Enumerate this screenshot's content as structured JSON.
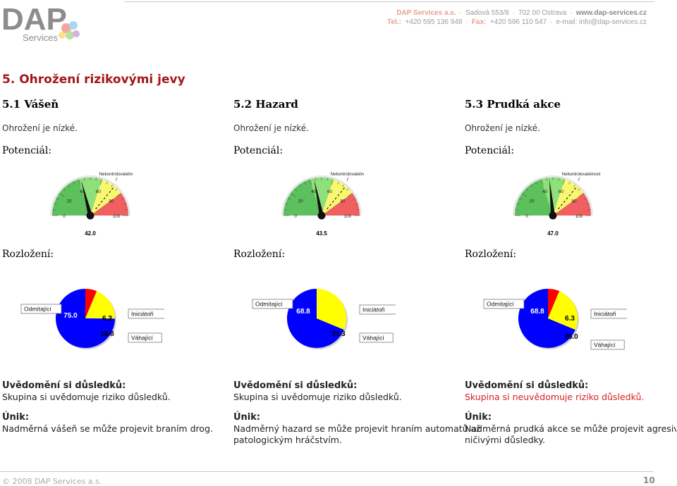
{
  "header": {
    "logo_text": "DAP",
    "logo_sub": "Services",
    "company": "DAP Services a.s.",
    "address_street": "Sadová 553/8",
    "address_city": "702 00 Ostrava",
    "website": "www.dap-services.cz",
    "tel_label": "Tel.:",
    "tel": "+420 595 136 948",
    "fax_label": "Fax:",
    "fax": "+420 596 110 547",
    "email": "e-mail: info@dap-services.cz"
  },
  "main_title": "5. Ohrožení rizikovými jevy",
  "sections": [
    {
      "title": "5.1 Vášeň",
      "threat": "Ohrožení je nízké.",
      "potential_label": "Potenciál:",
      "distribution_label": "Rozložení:",
      "awareness_label": "Uvědomění si důsledků:",
      "awareness_text": "Skupina si uvědomuje riziko důsledků.",
      "escape_label": "Únik:",
      "escape_text": "Nadměrná vášeň se může projevit braním drog.",
      "escape_text2": ""
    },
    {
      "title": "5.2 Hazard",
      "threat": "Ohrožení je nízké.",
      "potential_label": "Potenciál:",
      "distribution_label": "Rozložení:",
      "awareness_label": "Uvědomění si důsledků:",
      "awareness_text": "Skupina si uvědomuje riziko důsledků.",
      "escape_label": "Únik:",
      "escape_text": "Nadměrný hazard se může projevit hraním automatů až",
      "escape_text2": "patologickým hráčstvím."
    },
    {
      "title": "5.3 Prudká akce",
      "threat": "Ohrožení je nízké.",
      "potential_label": "Potenciál:",
      "distribution_label": "Rozložení:",
      "awareness_label": "Uvědomění si důsledků:",
      "awareness_text": "Skupina si neuvědomuje riziko důsledků.",
      "escape_label": "Únik:",
      "escape_text": "Nadměrná prudká akce se může projevit agresivitou s",
      "escape_text2": "ničivými důsledky."
    }
  ],
  "chart_data": [
    {
      "type": "gauge",
      "value": 42.0,
      "value_label": "42.0",
      "range": [
        0,
        100
      ],
      "ticks": [
        "0",
        "20",
        "40",
        "60",
        "80",
        "100"
      ],
      "annotation": "Nekontrolovatelnost",
      "colors": [
        "#5cc05c",
        "#8ee07a",
        "#f8f870",
        "#f06060"
      ]
    },
    {
      "type": "gauge",
      "value": 43.5,
      "value_label": "43.5",
      "range": [
        0,
        100
      ],
      "ticks": [
        "0",
        "20",
        "40",
        "60",
        "80",
        "100"
      ],
      "annotation": "Nekontrolovatelnost",
      "colors": [
        "#5cc05c",
        "#8ee07a",
        "#f8f870",
        "#f06060"
      ]
    },
    {
      "type": "gauge",
      "value": 47.0,
      "value_label": "47.0",
      "range": [
        0,
        100
      ],
      "ticks": [
        "0",
        "20",
        "40",
        "60",
        "80",
        "100"
      ],
      "annotation": "Nekontrolovatelnost",
      "colors": [
        "#5cc05c",
        "#8ee07a",
        "#f8f870",
        "#f06060"
      ]
    },
    {
      "type": "pie",
      "slices": [
        {
          "name": "Odmítající",
          "value": 75.0,
          "label": "75.0",
          "color": "#0000ff"
        },
        {
          "name": "Iniciátoři",
          "value": 6.3,
          "label": "6.3",
          "color": "#ff0000"
        },
        {
          "name": "Váhající",
          "value": 18.8,
          "label": "18.8",
          "color": "#ffff00"
        }
      ]
    },
    {
      "type": "pie",
      "slices": [
        {
          "name": "Odmítající",
          "value": 68.8,
          "label": "68.8",
          "color": "#0000ff"
        },
        {
          "name": "Iniciátoři",
          "value": 0,
          "label": "",
          "color": "#ff0000"
        },
        {
          "name": "Váhající",
          "value": 31.3,
          "label": "31.3",
          "color": "#ffff00"
        }
      ]
    },
    {
      "type": "pie",
      "slices": [
        {
          "name": "Odmítající",
          "value": 68.8,
          "label": "68.8",
          "color": "#0000ff"
        },
        {
          "name": "Iniciátoři",
          "value": 6.3,
          "label": "6.3",
          "color": "#ff0000"
        },
        {
          "name": "Váhající",
          "value": 25.0,
          "label": "25.0",
          "color": "#ffff00"
        }
      ]
    }
  ],
  "footer": {
    "copyright": "© 2008 DAP Services a.s.",
    "page": "10"
  }
}
